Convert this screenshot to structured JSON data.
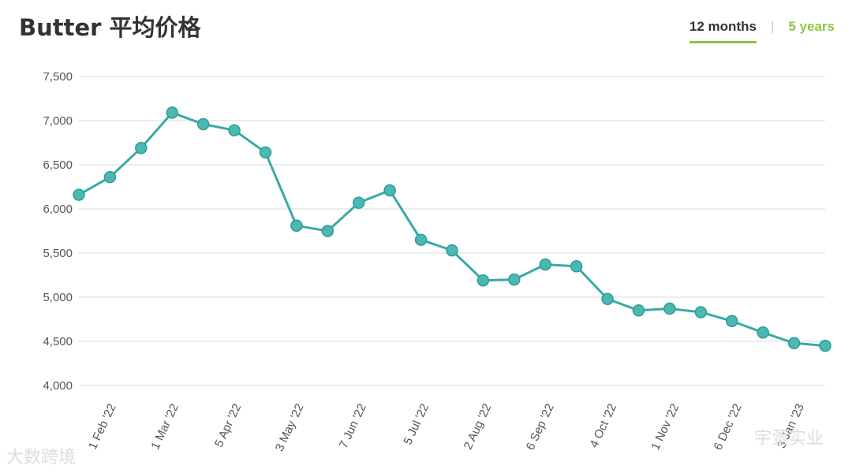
{
  "header": {
    "title": "Butter 平均价格",
    "tabs": [
      {
        "label": "12 months",
        "active": true
      },
      {
        "label": "5 years",
        "active": false
      }
    ]
  },
  "colors": {
    "line": "#3aa9a4",
    "marker_fill": "#4cb8b2",
    "grid": "#e6e6e6",
    "accent": "#8dc63f"
  },
  "chart_data": {
    "type": "line",
    "title": "Butter 平均价格",
    "xlabel": "",
    "ylabel": "",
    "ylim": [
      4000,
      7500
    ],
    "yticks": [
      4000,
      4500,
      5000,
      5500,
      6000,
      6500,
      7000,
      7500
    ],
    "ytick_labels": [
      "4,000",
      "4,500",
      "5,000",
      "5,500",
      "6,000",
      "6,500",
      "7,000",
      "7,500"
    ],
    "grid": true,
    "legend": "none",
    "x_tick_labels": [
      "1 Feb '22",
      "1 Mar '22",
      "5 Apr '22",
      "3 May '22",
      "7 Jun '22",
      "5 Jul '22",
      "2 Aug '22",
      "6 Sep '22",
      "4 Oct '22",
      "1 Nov '22",
      "6 Dec '22",
      "3 Jan '23"
    ],
    "series": [
      {
        "values": [
          6160,
          6360,
          6690,
          7090,
          6960,
          6890,
          6640,
          5810,
          5750,
          6070,
          6210,
          5650,
          5530,
          5190,
          5200,
          5370,
          5350,
          4980,
          4850,
          4870,
          4830,
          4730,
          4600,
          4480,
          4450
        ]
      }
    ]
  },
  "watermarks": {
    "left": "大数跨境",
    "right": "宇萱实业"
  }
}
